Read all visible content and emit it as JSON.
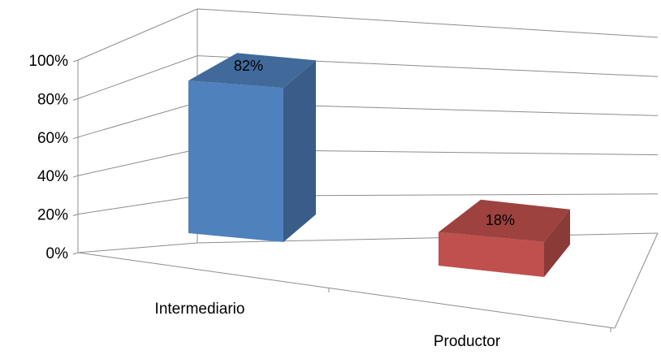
{
  "chart_data": {
    "type": "bar",
    "categories": [
      "Intermediario",
      "Productor"
    ],
    "values": [
      82,
      18
    ],
    "data_labels": [
      "82%",
      "18%"
    ],
    "colors": [
      "#4F81BD",
      "#C0504D"
    ],
    "ylim": [
      0,
      100
    ],
    "yticks": [
      0,
      20,
      40,
      60,
      80,
      100
    ],
    "ytick_labels": [
      "0%",
      "20%",
      "40%",
      "60%",
      "80%",
      "100%"
    ],
    "grid": true,
    "legend": "none",
    "three_d": true,
    "title": "",
    "xlabel": "",
    "ylabel": ""
  }
}
